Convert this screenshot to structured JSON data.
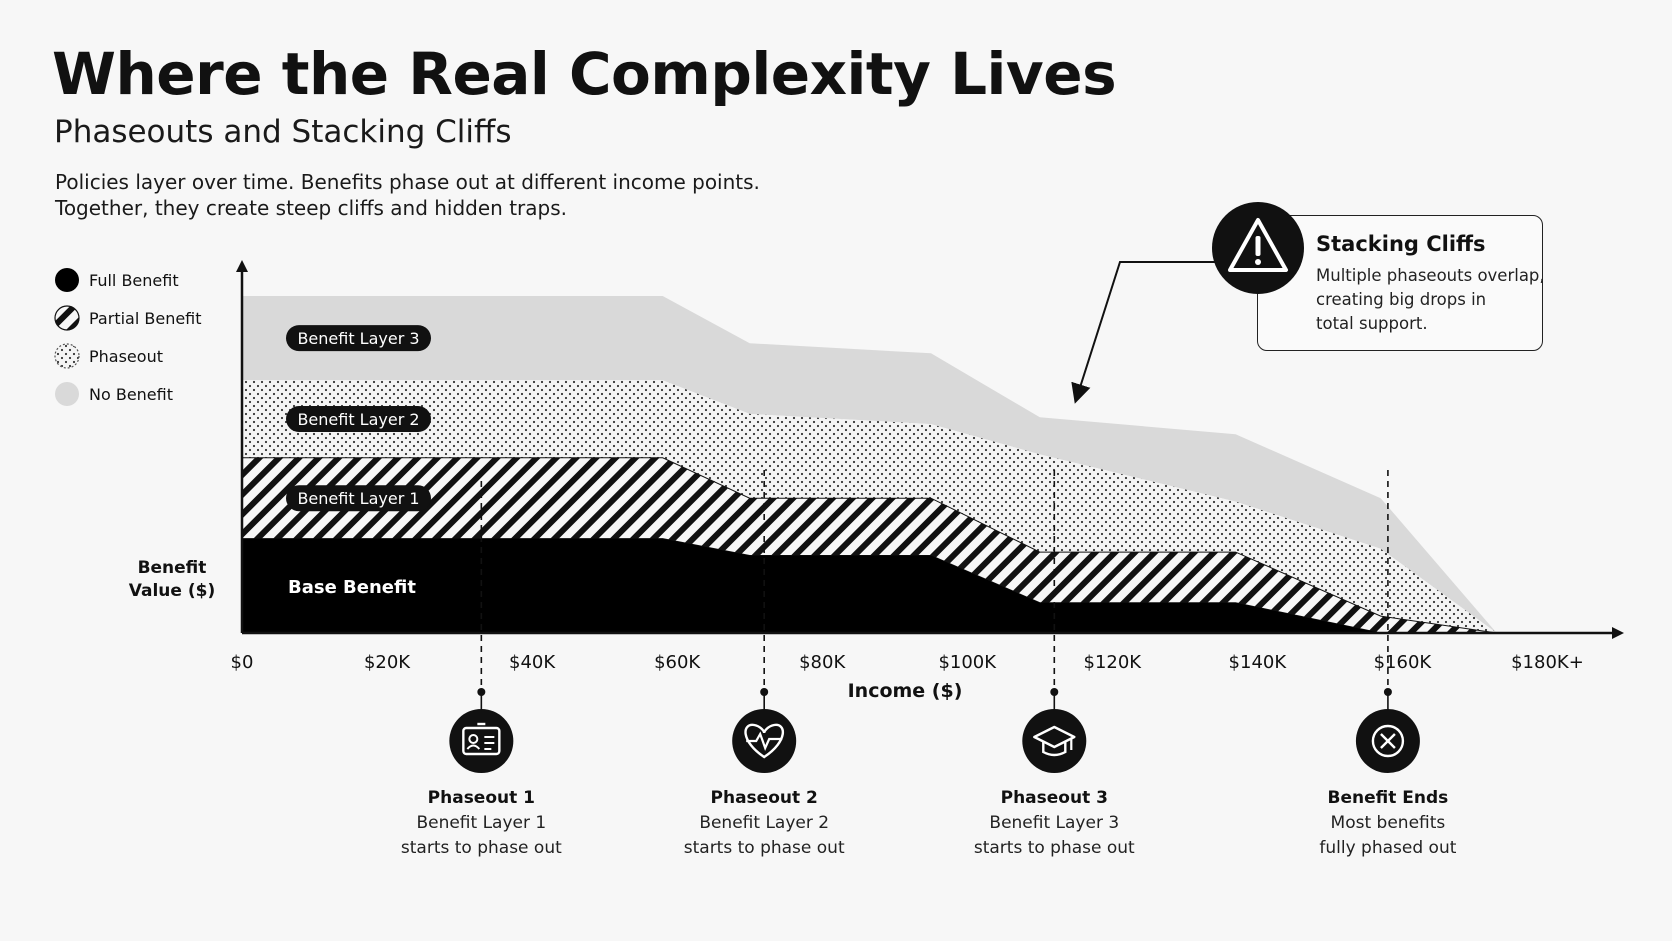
{
  "title": "Where the Real Complexity Lives",
  "subtitle": "Phaseouts and Stacking Cliffs",
  "description": [
    "Policies layer over time. Benefits phase out at different income points.",
    "Together, they create steep cliffs and hidden traps."
  ],
  "legend": [
    {
      "label": "Full Benefit",
      "pattern": "solid"
    },
    {
      "label": "Partial Benefit",
      "pattern": "hatch"
    },
    {
      "label": "Phaseout",
      "pattern": "dots"
    },
    {
      "label": "No Benefit",
      "pattern": "gray"
    }
  ],
  "callout": {
    "icon": "warning-icon",
    "title": "Stacking Cliffs",
    "body": [
      "Multiple phaseouts overlap,",
      "creating big drops in",
      "total support."
    ]
  },
  "milestones": [
    {
      "icon": "id-card-icon",
      "title": "Phaseout 1",
      "lines": [
        "Benefit Layer 1",
        "starts to phase out"
      ],
      "income": 33000
    },
    {
      "icon": "heart-pulse-icon",
      "title": "Phaseout 2",
      "lines": [
        "Benefit Layer 2",
        "starts to phase out"
      ],
      "income": 72000
    },
    {
      "icon": "graduation-cap-icon",
      "title": "Phaseout 3",
      "lines": [
        "Benefit Layer 3",
        "starts to phase out"
      ],
      "income": 112000
    },
    {
      "icon": "x-circle-icon",
      "title": "Benefit Ends",
      "lines": [
        "Most benefits",
        "fully phased out"
      ],
      "income": 158000
    }
  ],
  "chart_data": {
    "type": "area",
    "stacked": true,
    "xlabel": "Income ($)",
    "ylabel": "Benefit Value ($)",
    "x_tick_labels": [
      "$0",
      "$20K",
      "$40K",
      "$60K",
      "$80K",
      "$100K",
      "$120K",
      "$140K",
      "$160K",
      "$180K+"
    ],
    "x_ticks": [
      0,
      20000,
      40000,
      60000,
      80000,
      100000,
      120000,
      140000,
      160000,
      180000
    ],
    "xlim": [
      0,
      190000
    ],
    "ylim": [
      0,
      100
    ],
    "y_tick_labels": [],
    "grid": false,
    "legend_position": "left",
    "x": [
      0,
      58000,
      70000,
      95000,
      110000,
      137000,
      157000,
      173000,
      185000
    ],
    "series": [
      {
        "name": "Base Benefit",
        "values": [
          28,
          28,
          23,
          23,
          9,
          9,
          0,
          0,
          0
        ]
      },
      {
        "name": "Benefit Layer 1",
        "values": [
          24,
          24,
          17,
          17,
          15,
          15,
          5,
          0,
          0
        ]
      },
      {
        "name": "Benefit Layer 2",
        "values": [
          23,
          23,
          25,
          22,
          29,
          15,
          20,
          0,
          0
        ]
      },
      {
        "name": "Benefit Layer 3",
        "values": [
          25,
          25,
          21,
          21,
          11,
          20,
          15,
          0,
          0
        ]
      }
    ]
  }
}
